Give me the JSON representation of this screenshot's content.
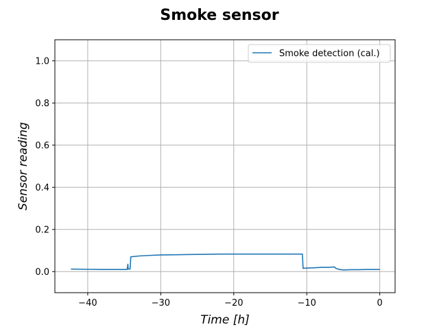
{
  "chart_data": {
    "type": "line",
    "title": "Smoke sensor",
    "xlabel": "Time [h]",
    "ylabel": "Sensor reading",
    "xlim": [
      -44.5,
      2.1
    ],
    "ylim": [
      -0.1,
      1.1
    ],
    "xticks": [
      -40,
      -30,
      -20,
      -10,
      0
    ],
    "xtick_labels": [
      "−40",
      "−30",
      "−20",
      "−10",
      "0"
    ],
    "yticks": [
      0.0,
      0.2,
      0.4,
      0.6,
      0.8,
      1.0
    ],
    "ytick_labels": [
      "0.0",
      "0.2",
      "0.4",
      "0.6",
      "0.8",
      "1.0"
    ],
    "grid": true,
    "legend": {
      "position": "upper-right"
    },
    "series": [
      {
        "name": "Smoke detection (cal.)",
        "color": "#1f77b4",
        "x": [
          -42.3,
          -40,
          -38,
          -36,
          -34.6,
          -34.5,
          -34.45,
          -34.4,
          -34.3,
          -34.2,
          -34.1,
          -33,
          -32,
          -30,
          -28,
          -26,
          -24,
          -22,
          -20,
          -18,
          -16,
          -14,
          -12,
          -10.6,
          -10.5,
          -10.4,
          -9,
          -8,
          -7,
          -6.2,
          -6,
          -5.5,
          -5,
          -4,
          -3,
          -2,
          -1,
          0
        ],
        "y": [
          0.012,
          0.011,
          0.01,
          0.01,
          0.01,
          0.035,
          0.012,
          0.012,
          0.012,
          0.012,
          0.07,
          0.074,
          0.076,
          0.079,
          0.08,
          0.081,
          0.082,
          0.083,
          0.083,
          0.083,
          0.083,
          0.083,
          0.083,
          0.083,
          0.015,
          0.016,
          0.018,
          0.02,
          0.02,
          0.022,
          0.015,
          0.01,
          0.008,
          0.009,
          0.009,
          0.01,
          0.01,
          0.01
        ]
      }
    ]
  }
}
